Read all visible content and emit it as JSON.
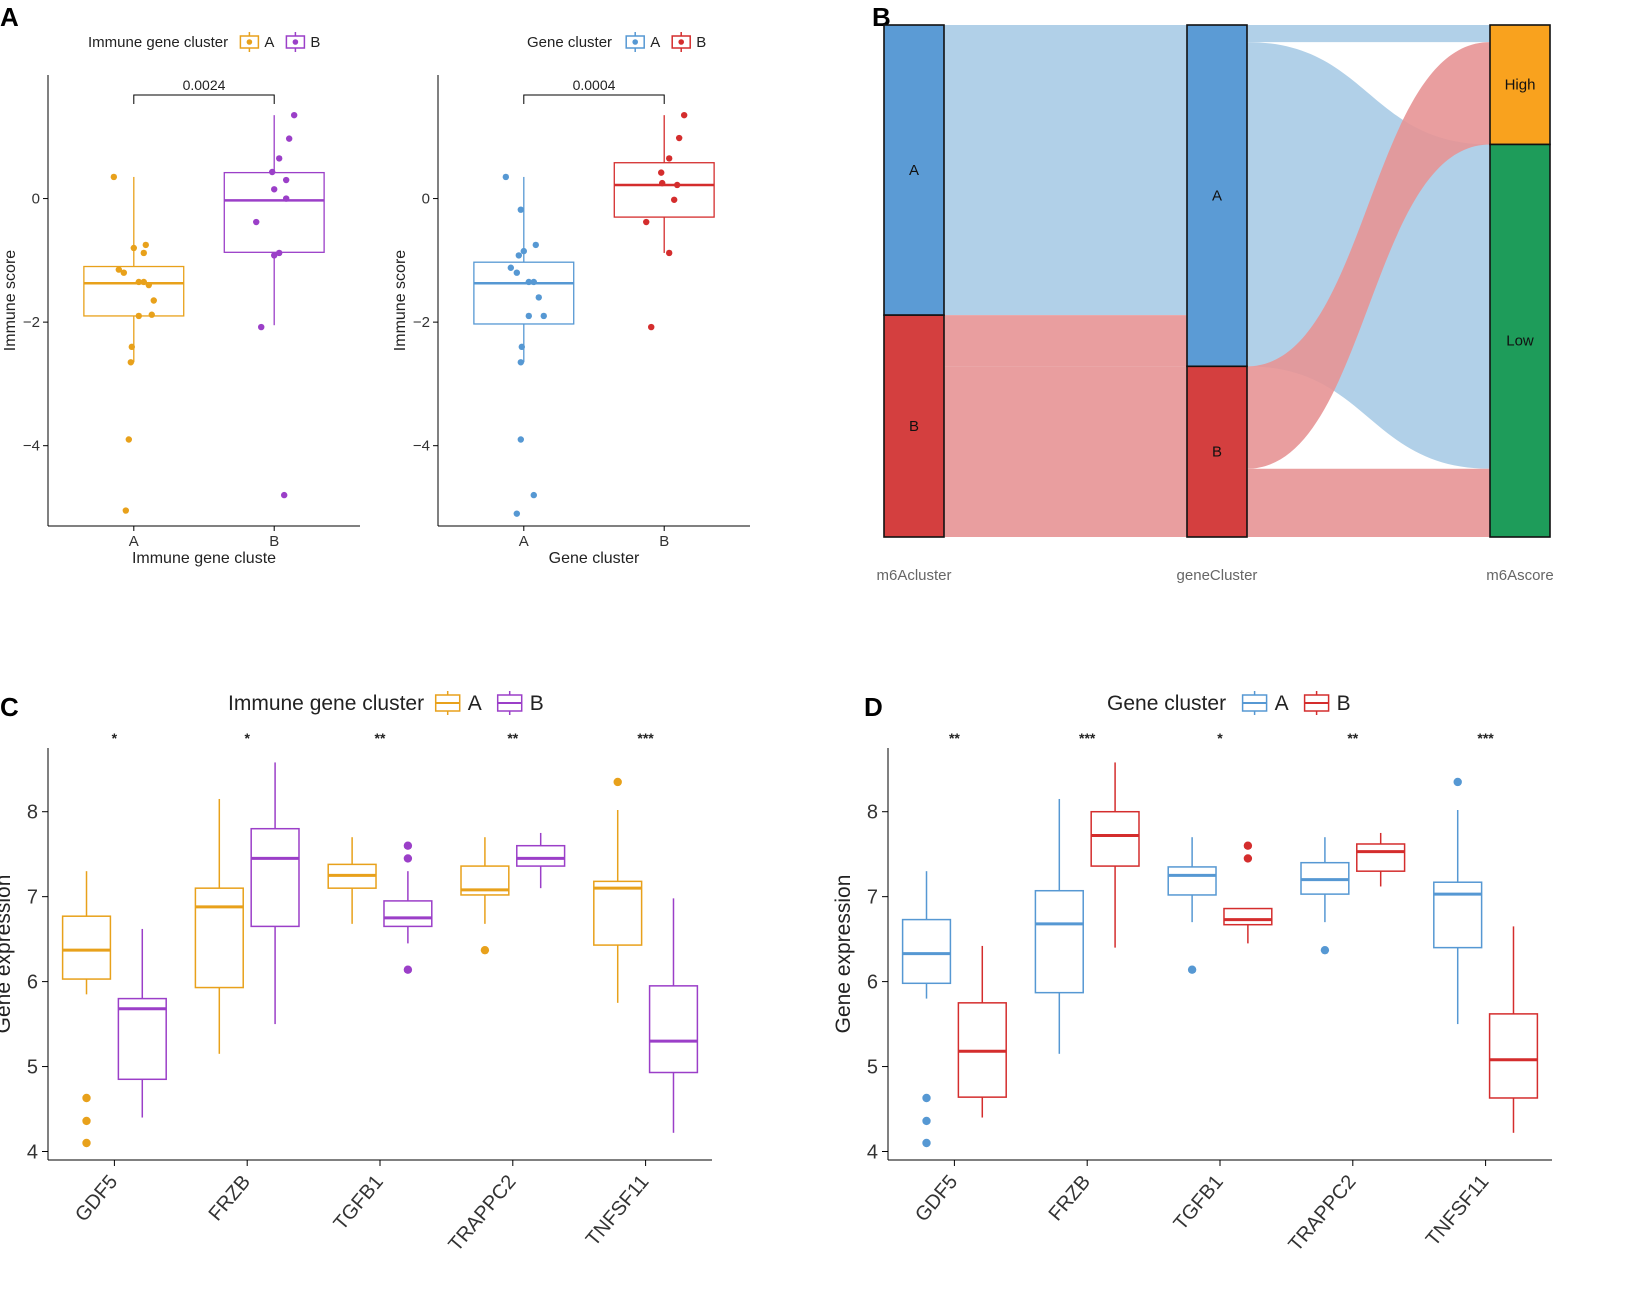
{
  "panels": {
    "A": {
      "label": "A"
    },
    "B": {
      "label": "B"
    },
    "C": {
      "label": "C"
    },
    "D": {
      "label": "D"
    }
  },
  "colors": {
    "immune_A": "#E8A11B",
    "immune_B": "#9B3FC8",
    "gene_A": "#5698D3",
    "gene_B": "#D42D2D",
    "sankey_A_node": "#5B9BD5",
    "sankey_B_node": "#D43F3F",
    "sankey_A_flow": "#A9CBE6",
    "sankey_B_flow": "#E79395",
    "sankey_high": "#F9A21E",
    "sankey_low": "#1E9C5A"
  },
  "chart_data": [
    {
      "id": "A1",
      "type": "box",
      "legend_title": "Immune gene cluster",
      "legend_entries": [
        "A",
        "B"
      ],
      "xlabel": "Immune gene cluste",
      "ylabel": "Immune score",
      "categories": [
        "A",
        "B"
      ],
      "ylim": [
        -5.3,
        2.0
      ],
      "yticks": [
        0,
        -2,
        -4
      ],
      "ytick_labels": [
        "0",
        "−2",
        "−4"
      ],
      "pvalue": "0.0024",
      "boxes": [
        {
          "q1": -1.9,
          "median": -1.37,
          "q3": -1.1,
          "wlow": -2.65,
          "whigh": 0.35
        },
        {
          "q1": -0.87,
          "median": -0.03,
          "q3": 0.42,
          "wlow": -2.05,
          "whigh": 1.35
        }
      ],
      "points": [
        [
          [
            -0.2,
            0.35
          ],
          [
            0.0,
            -0.8
          ],
          [
            0.12,
            -0.75
          ],
          [
            0.1,
            -0.88
          ],
          [
            -0.15,
            -1.15
          ],
          [
            -0.1,
            -1.2
          ],
          [
            0.05,
            -1.35
          ],
          [
            0.1,
            -1.35
          ],
          [
            0.15,
            -1.4
          ],
          [
            0.2,
            -1.65
          ],
          [
            0.05,
            -1.9
          ],
          [
            0.18,
            -1.88
          ],
          [
            -0.02,
            -2.4
          ],
          [
            -0.03,
            -2.65
          ],
          [
            -0.05,
            -3.9
          ],
          [
            -0.08,
            -5.05
          ]
        ],
        [
          [
            0.2,
            1.35
          ],
          [
            0.15,
            0.97
          ],
          [
            0.05,
            0.65
          ],
          [
            -0.02,
            0.43
          ],
          [
            0.12,
            0.3
          ],
          [
            0.0,
            0.15
          ],
          [
            0.12,
            0.0
          ],
          [
            -0.18,
            -0.38
          ],
          [
            0.0,
            -0.92
          ],
          [
            0.05,
            -0.88
          ],
          [
            -0.13,
            -2.08
          ],
          [
            0.1,
            -4.8
          ]
        ]
      ]
    },
    {
      "id": "A2",
      "type": "box",
      "legend_title": "Gene cluster",
      "legend_entries": [
        "A",
        "B"
      ],
      "xlabel": "Gene cluster",
      "ylabel": "Immune score",
      "categories": [
        "A",
        "B"
      ],
      "ylim": [
        -5.3,
        2.0
      ],
      "yticks": [
        0,
        -2,
        -4
      ],
      "ytick_labels": [
        "0",
        "−2",
        "−4"
      ],
      "pvalue": "0.0004",
      "boxes": [
        {
          "q1": -2.03,
          "median": -1.37,
          "q3": -1.03,
          "wlow": -2.65,
          "whigh": 0.35
        },
        {
          "q1": -0.3,
          "median": 0.22,
          "q3": 0.58,
          "wlow": -0.88,
          "whigh": 1.35
        }
      ],
      "points": [
        [
          [
            -0.18,
            0.35
          ],
          [
            -0.03,
            -0.18
          ],
          [
            0.0,
            -0.85
          ],
          [
            0.12,
            -0.75
          ],
          [
            -0.05,
            -0.92
          ],
          [
            -0.13,
            -1.12
          ],
          [
            -0.07,
            -1.2
          ],
          [
            0.05,
            -1.35
          ],
          [
            0.1,
            -1.35
          ],
          [
            0.15,
            -1.6
          ],
          [
            0.05,
            -1.9
          ],
          [
            0.2,
            -1.9
          ],
          [
            -0.02,
            -2.4
          ],
          [
            -0.03,
            -2.65
          ],
          [
            -0.03,
            -3.9
          ],
          [
            0.1,
            -4.8
          ],
          [
            -0.07,
            -5.1
          ]
        ],
        [
          [
            0.2,
            1.35
          ],
          [
            0.15,
            0.98
          ],
          [
            0.05,
            0.65
          ],
          [
            -0.03,
            0.42
          ],
          [
            -0.02,
            0.25
          ],
          [
            0.13,
            0.22
          ],
          [
            0.1,
            -0.02
          ],
          [
            -0.18,
            -0.38
          ],
          [
            0.05,
            -0.88
          ],
          [
            -0.13,
            -2.08
          ]
        ]
      ]
    },
    {
      "id": "C",
      "type": "box",
      "legend_title": "Immune gene cluster",
      "legend_entries": [
        "A",
        "B"
      ],
      "xlabel": "",
      "ylabel": "Gene expression",
      "categories": [
        "GDF5",
        "FRZB",
        "TGFB1",
        "TRAPPC2",
        "TNFSF11"
      ],
      "ylim": [
        3.9,
        8.75
      ],
      "yticks": [
        4,
        5,
        6,
        7,
        8
      ],
      "ytick_labels": [
        "4",
        "5",
        "6",
        "7",
        "8"
      ],
      "significance": [
        "*",
        "*",
        "**",
        "**",
        "***"
      ],
      "groups": [
        [
          {
            "q1": 6.03,
            "median": 6.37,
            "q3": 6.77,
            "wlow": 5.85,
            "whigh": 7.3,
            "outliers": [
              4.63,
              4.36,
              4.1
            ]
          },
          {
            "q1": 5.93,
            "median": 6.88,
            "q3": 7.1,
            "wlow": 5.15,
            "whigh": 8.15,
            "outliers": []
          },
          {
            "q1": 7.1,
            "median": 7.25,
            "q3": 7.38,
            "wlow": 6.68,
            "whigh": 7.7,
            "outliers": []
          },
          {
            "q1": 7.02,
            "median": 7.08,
            "q3": 7.36,
            "wlow": 6.68,
            "whigh": 7.7,
            "outliers": [
              6.37
            ]
          },
          {
            "q1": 6.43,
            "median": 7.1,
            "q3": 7.18,
            "wlow": 5.75,
            "whigh": 8.02,
            "outliers": [
              8.35
            ]
          }
        ],
        [
          {
            "q1": 4.85,
            "median": 5.68,
            "q3": 5.8,
            "wlow": 4.4,
            "whigh": 6.62,
            "outliers": []
          },
          {
            "q1": 6.65,
            "median": 7.45,
            "q3": 7.8,
            "wlow": 5.5,
            "whigh": 8.58,
            "outliers": []
          },
          {
            "q1": 6.65,
            "median": 6.75,
            "q3": 6.95,
            "wlow": 6.45,
            "whigh": 7.3,
            "outliers": [
              7.6,
              7.45,
              6.14
            ]
          },
          {
            "q1": 7.36,
            "median": 7.45,
            "q3": 7.6,
            "wlow": 7.1,
            "whigh": 7.75,
            "outliers": []
          },
          {
            "q1": 4.93,
            "median": 5.3,
            "q3": 5.95,
            "wlow": 4.22,
            "whigh": 6.98,
            "outliers": []
          }
        ]
      ]
    },
    {
      "id": "D",
      "type": "box",
      "legend_title": "Gene cluster",
      "legend_entries": [
        "A",
        "B"
      ],
      "xlabel": "",
      "ylabel": "Gene expression",
      "categories": [
        "GDF5",
        "FRZB",
        "TGFB1",
        "TRAPPC2",
        "TNFSF11"
      ],
      "ylim": [
        3.9,
        8.75
      ],
      "yticks": [
        4,
        5,
        6,
        7,
        8
      ],
      "ytick_labels": [
        "4",
        "5",
        "6",
        "7",
        "8"
      ],
      "significance": [
        "**",
        "***",
        "*",
        "**",
        "***"
      ],
      "groups": [
        [
          {
            "q1": 5.98,
            "median": 6.33,
            "q3": 6.73,
            "wlow": 5.8,
            "whigh": 7.3,
            "outliers": [
              4.63,
              4.36,
              4.1
            ]
          },
          {
            "q1": 5.87,
            "median": 6.68,
            "q3": 7.07,
            "wlow": 5.15,
            "whigh": 8.15,
            "outliers": []
          },
          {
            "q1": 7.02,
            "median": 7.25,
            "q3": 7.35,
            "wlow": 6.7,
            "whigh": 7.7,
            "outliers": [
              6.14
            ]
          },
          {
            "q1": 7.03,
            "median": 7.2,
            "q3": 7.4,
            "wlow": 6.7,
            "whigh": 7.7,
            "outliers": [
              6.37
            ]
          },
          {
            "q1": 6.4,
            "median": 7.03,
            "q3": 7.17,
            "wlow": 5.5,
            "whigh": 8.02,
            "outliers": [
              8.35
            ]
          }
        ],
        [
          {
            "q1": 4.64,
            "median": 5.18,
            "q3": 5.75,
            "wlow": 4.4,
            "whigh": 6.42,
            "outliers": []
          },
          {
            "q1": 7.36,
            "median": 7.72,
            "q3": 8.0,
            "wlow": 6.4,
            "whigh": 8.58,
            "outliers": []
          },
          {
            "q1": 6.67,
            "median": 6.73,
            "q3": 6.86,
            "wlow": 6.45,
            "whigh": 6.86,
            "outliers": [
              7.6,
              7.45
            ]
          },
          {
            "q1": 7.3,
            "median": 7.53,
            "q3": 7.62,
            "wlow": 7.12,
            "whigh": 7.75,
            "outliers": []
          },
          {
            "q1": 4.63,
            "median": 5.08,
            "q3": 5.62,
            "wlow": 4.22,
            "whigh": 6.65,
            "outliers": []
          }
        ]
      ]
    },
    {
      "id": "B",
      "type": "sankey",
      "axes": [
        "m6Acluster",
        "geneCluster",
        "m6Ascore"
      ],
      "nodes": [
        {
          "axis": 0,
          "name": "A",
          "count": 17,
          "color_key": "sankey_A_node"
        },
        {
          "axis": 0,
          "name": "B",
          "count": 13,
          "color_key": "sankey_B_node"
        },
        {
          "axis": 1,
          "name": "A",
          "count": 20,
          "color_key": "sankey_A_node"
        },
        {
          "axis": 1,
          "name": "B",
          "count": 10,
          "color_key": "sankey_B_node"
        },
        {
          "axis": 2,
          "name": "High",
          "count": 7,
          "color_key": "sankey_high"
        },
        {
          "axis": 2,
          "name": "Low",
          "count": 23,
          "color_key": "sankey_low"
        }
      ],
      "flows": [
        {
          "source": "A",
          "via": "A",
          "target": "High",
          "value": 1,
          "origin": "A"
        },
        {
          "source": "A",
          "via": "A",
          "target": "Low",
          "value": 16,
          "origin": "A"
        },
        {
          "source": "B",
          "via": "A",
          "target": "Low",
          "value": 3,
          "origin": "B"
        },
        {
          "source": "B",
          "via": "B",
          "target": "High",
          "value": 6,
          "origin": "B"
        },
        {
          "source": "B",
          "via": "B",
          "target": "Low",
          "value": 4,
          "origin": "B"
        }
      ]
    }
  ]
}
